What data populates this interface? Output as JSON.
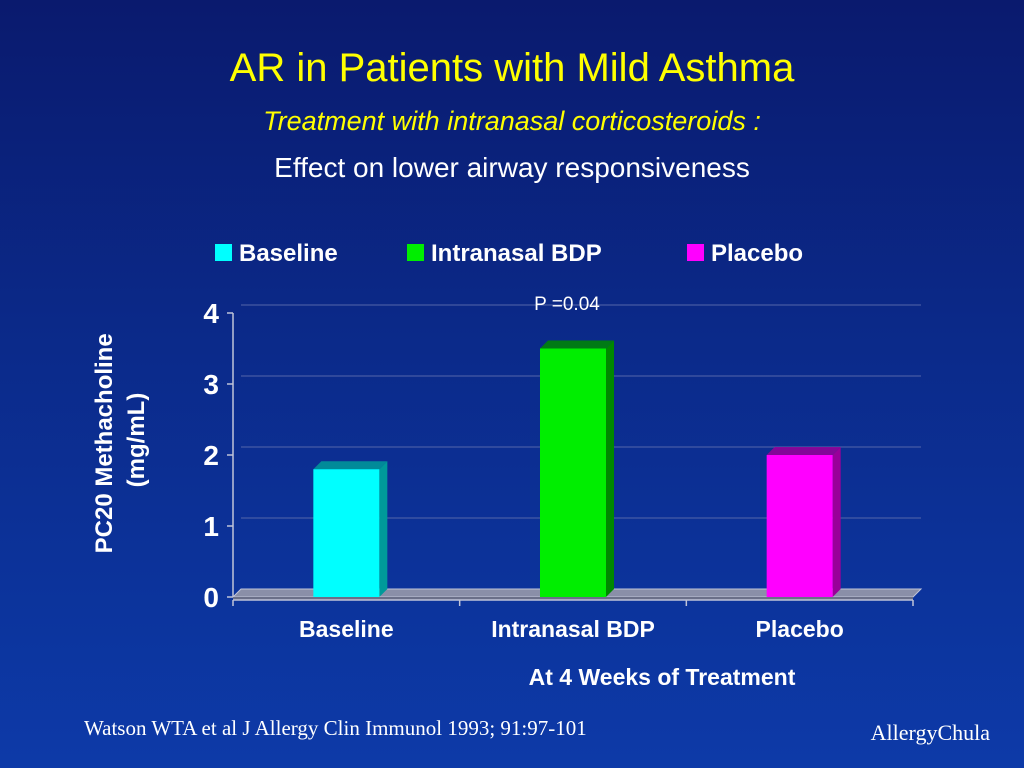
{
  "slide": {
    "title": "AR in Patients with Mild Asthma",
    "subtitle": "Treatment with intranasal corticosteroids :",
    "subtitle2": "Effect on lower airway responsiveness",
    "citation": "Watson WTA et al  J Allergy Clin Immunol 1993; 91:97-101",
    "brand": "AllergyChula"
  },
  "chart_data": {
    "type": "bar",
    "categories": [
      "Baseline",
      "Intranasal BDP",
      "Placebo"
    ],
    "values": [
      1.8,
      3.5,
      2.0
    ],
    "colors": [
      "#00ffff",
      "#00ee00",
      "#ff00ff"
    ],
    "side_colors": [
      "#009a9a",
      "#008800",
      "#990099"
    ],
    "legend": [
      "Baseline",
      "Intranasal BDP",
      "Placebo"
    ],
    "legend_position": "top",
    "ylabel_lines": [
      "PC20 Methacholine",
      "(mg/mL)"
    ],
    "xlabel": "At 4 Weeks of Treatment",
    "ylim": [
      0,
      4
    ],
    "yticks": [
      0,
      1,
      2,
      3,
      4
    ],
    "gridlines": true,
    "annotation": "P =0.04"
  }
}
